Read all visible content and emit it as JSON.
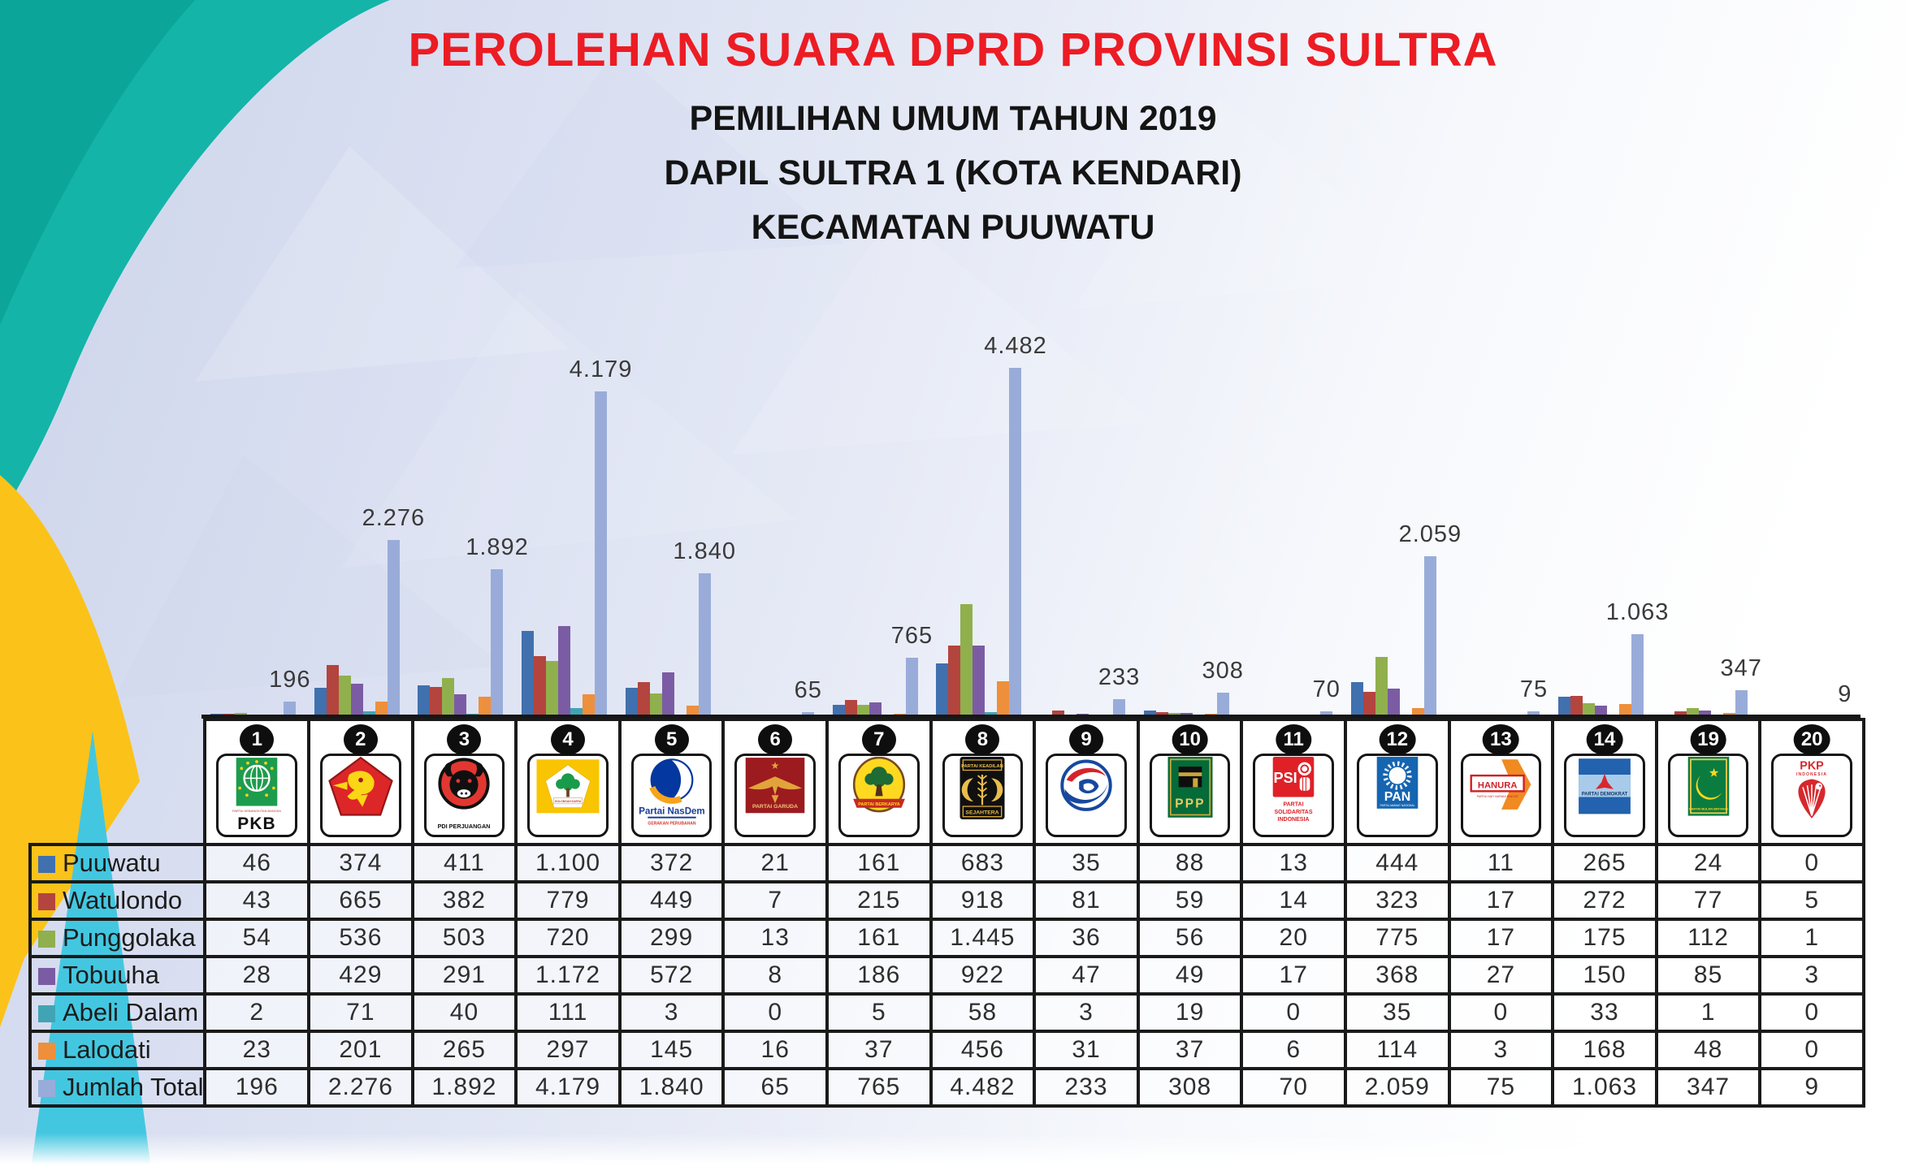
{
  "header": {
    "title": "PEROLEHAN SUARA DPRD PROVINSI SULTRA",
    "subtitle1": "PEMILIHAN UMUM TAHUN 2019",
    "subtitle2": "DAPIL SULTRA 1 (KOTA KENDARI)",
    "subtitle3": "KECAMATAN PUUWATU"
  },
  "colors": {
    "title_red": "#EC1C24",
    "accent_teal": "#14B4A8",
    "accent_teal_dark": "#0CA59A",
    "accent_yellow": "#FBC21A",
    "accent_cyan": "#43C7E0",
    "border_black": "#1a1a1a"
  },
  "parties": [
    {
      "number": "1",
      "id": "pkb",
      "logo_text": "PKB",
      "logo_text2": "PARTAI KEBANGKITAN BANGSA"
    },
    {
      "number": "2",
      "id": "gerindra",
      "logo_text": "",
      "logo_text2": ""
    },
    {
      "number": "3",
      "id": "pdip",
      "logo_text": "PDI PERJUANGAN",
      "logo_text2": ""
    },
    {
      "number": "4",
      "id": "golkar",
      "logo_text": "GOLONGAN KARYA",
      "logo_text2": ""
    },
    {
      "number": "5",
      "id": "nasdem",
      "logo_text": "Partai NasDem",
      "logo_text2": "GERAKAN PERUBAHAN"
    },
    {
      "number": "6",
      "id": "garuda",
      "logo_text": "PARTAI GARUDA",
      "logo_text2": ""
    },
    {
      "number": "7",
      "id": "berkarya",
      "logo_text": "PARTAI BERKARYA",
      "logo_text2": ""
    },
    {
      "number": "8",
      "id": "pks",
      "logo_text": "PARTAI KEADILAN",
      "logo_text2": "SEJAHTERA"
    },
    {
      "number": "9",
      "id": "perindo",
      "logo_text": "",
      "logo_text2": ""
    },
    {
      "number": "10",
      "id": "ppp",
      "logo_text": "PPP",
      "logo_text2": ""
    },
    {
      "number": "11",
      "id": "psi",
      "logo_text": "PSI",
      "logo_text2": "PARTAI SOLIDARITAS INDONESIA"
    },
    {
      "number": "12",
      "id": "pan",
      "logo_text": "PAN",
      "logo_text2": "PARTAI AMANAT NASIONAL"
    },
    {
      "number": "13",
      "id": "hanura",
      "logo_text": "HANURA",
      "logo_text2": "PARTAI HATI NURANI RAKYAT"
    },
    {
      "number": "14",
      "id": "demokrat",
      "logo_text": "PARTAI DEMOKRAT",
      "logo_text2": ""
    },
    {
      "number": "19",
      "id": "pbb",
      "logo_text": "PARTAI BULAN BINTANG",
      "logo_text2": ""
    },
    {
      "number": "20",
      "id": "pkp",
      "logo_text": "PKP",
      "logo_text2": "INDONESIA"
    }
  ],
  "chart_data": {
    "type": "bar",
    "categories": [
      "1",
      "2",
      "3",
      "4",
      "5",
      "6",
      "7",
      "8",
      "9",
      "10",
      "11",
      "12",
      "13",
      "14",
      "19",
      "20"
    ],
    "series": [
      {
        "name": "Puuwatu",
        "color": "#4170AE",
        "values": [
          46,
          374,
          411,
          1100,
          372,
          21,
          161,
          683,
          35,
          88,
          13,
          444,
          11,
          265,
          24,
          0
        ]
      },
      {
        "name": "Watulondo",
        "color": "#B4443E",
        "values": [
          43,
          665,
          382,
          779,
          449,
          7,
          215,
          918,
          81,
          59,
          14,
          323,
          17,
          272,
          77,
          5
        ]
      },
      {
        "name": "Punggolaka",
        "color": "#90B04D",
        "values": [
          54,
          536,
          503,
          720,
          299,
          13,
          161,
          1445,
          36,
          56,
          20,
          775,
          17,
          175,
          112,
          1
        ]
      },
      {
        "name": "Tobuuha",
        "color": "#7B5CA4",
        "values": [
          28,
          429,
          291,
          1172,
          572,
          8,
          186,
          922,
          47,
          49,
          17,
          368,
          27,
          150,
          85,
          3
        ]
      },
      {
        "name": "Abeli Dalam",
        "color": "#41A4B5",
        "values": [
          2,
          71,
          40,
          111,
          3,
          0,
          5,
          58,
          3,
          19,
          0,
          35,
          0,
          33,
          1,
          0
        ]
      },
      {
        "name": "Lalodati",
        "color": "#EE8F3C",
        "values": [
          23,
          201,
          265,
          297,
          145,
          16,
          37,
          456,
          31,
          37,
          6,
          114,
          3,
          168,
          48,
          0
        ]
      },
      {
        "name": "Jumlah Total",
        "color": "#99ACD9",
        "values": [
          196,
          2276,
          1892,
          4179,
          1840,
          65,
          765,
          4482,
          233,
          308,
          70,
          2059,
          75,
          1063,
          347,
          9
        ]
      }
    ],
    "bar_labels": [
      "196",
      "2.276",
      "1.892",
      "4.179",
      "1.840",
      "65",
      "765",
      "4.482",
      "233",
      "308",
      "70",
      "2.059",
      "75",
      "1.063",
      "347",
      "9"
    ],
    "ylim": [
      0,
      4482
    ],
    "grid": false,
    "legend_position": "table-rows"
  },
  "table": {
    "rows": [
      {
        "label": "Puuwatu",
        "color": "#4170AE",
        "cells": [
          "46",
          "374",
          "411",
          "1.100",
          "372",
          "21",
          "161",
          "683",
          "35",
          "88",
          "13",
          "444",
          "11",
          "265",
          "24",
          "0"
        ]
      },
      {
        "label": "Watulondo",
        "color": "#B4443E",
        "cells": [
          "43",
          "665",
          "382",
          "779",
          "449",
          "7",
          "215",
          "918",
          "81",
          "59",
          "14",
          "323",
          "17",
          "272",
          "77",
          "5"
        ]
      },
      {
        "label": "Punggolaka",
        "color": "#90B04D",
        "cells": [
          "54",
          "536",
          "503",
          "720",
          "299",
          "13",
          "161",
          "1.445",
          "36",
          "56",
          "20",
          "775",
          "17",
          "175",
          "112",
          "1"
        ]
      },
      {
        "label": "Tobuuha",
        "color": "#7B5CA4",
        "cells": [
          "28",
          "429",
          "291",
          "1.172",
          "572",
          "8",
          "186",
          "922",
          "47",
          "49",
          "17",
          "368",
          "27",
          "150",
          "85",
          "3"
        ]
      },
      {
        "label": "Abeli Dalam",
        "color": "#41A4B5",
        "cells": [
          "2",
          "71",
          "40",
          "111",
          "3",
          "0",
          "5",
          "58",
          "3",
          "19",
          "0",
          "35",
          "0",
          "33",
          "1",
          "0"
        ]
      },
      {
        "label": "Lalodati",
        "color": "#EE8F3C",
        "cells": [
          "23",
          "201",
          "265",
          "297",
          "145",
          "16",
          "37",
          "456",
          "31",
          "37",
          "6",
          "114",
          "3",
          "168",
          "48",
          "0"
        ]
      },
      {
        "label": "Jumlah Total",
        "color": "#99ACD9",
        "cells": [
          "196",
          "2.276",
          "1.892",
          "4.179",
          "1.840",
          "65",
          "765",
          "4.482",
          "233",
          "308",
          "70",
          "2.059",
          "75",
          "1.063",
          "347",
          "9"
        ]
      }
    ]
  }
}
